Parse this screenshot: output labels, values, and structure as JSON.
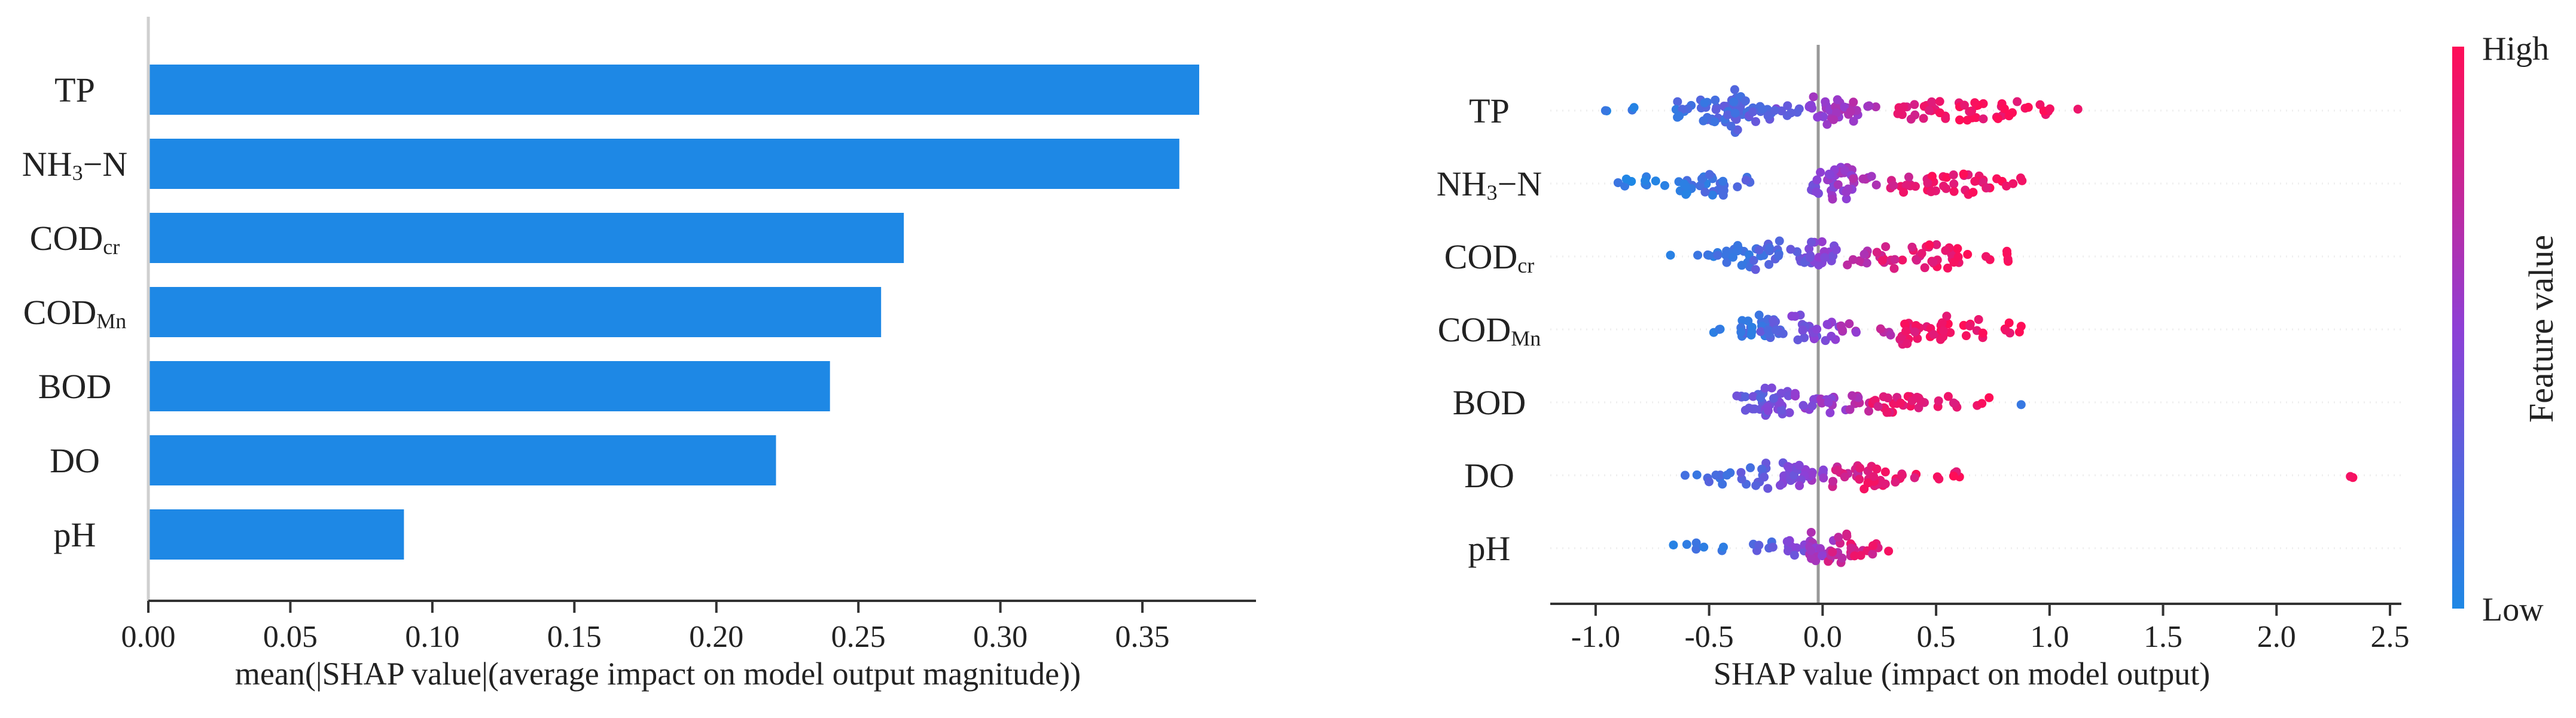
{
  "chart_data": [
    {
      "type": "bar",
      "orientation": "horizontal",
      "title": "",
      "categories": [
        "TP",
        "NH3-N",
        "CODcr",
        "CODMn",
        "BOD",
        "DO",
        "pH"
      ],
      "labels": [
        {
          "main": "TP",
          "sub": ""
        },
        {
          "main": "NH",
          "sub": "3",
          "tail": "−N"
        },
        {
          "main": "COD",
          "sub": "cr"
        },
        {
          "main": "COD",
          "sub": "Mn"
        },
        {
          "main": "BOD",
          "sub": ""
        },
        {
          "main": "DO",
          "sub": ""
        },
        {
          "main": "pH",
          "sub": ""
        }
      ],
      "values": [
        0.37,
        0.363,
        0.266,
        0.258,
        0.24,
        0.221,
        0.09
      ],
      "xlim": [
        0,
        0.39
      ],
      "xticks": [
        0.0,
        0.05,
        0.1,
        0.15,
        0.2,
        0.25,
        0.3,
        0.35
      ],
      "xtick_labels": [
        "0.00",
        "0.05",
        "0.10",
        "0.15",
        "0.20",
        "0.25",
        "0.30",
        "0.35"
      ],
      "xlabel": "mean(|SHAP value|(average impact on model output magnitude))",
      "ylabel": "",
      "color": "#1E88E5"
    },
    {
      "type": "scatter",
      "subtype": "beeswarm",
      "title": "",
      "features": [
        "TP",
        "NH3-N",
        "CODcr",
        "CODMn",
        "BOD",
        "DO",
        "pH"
      ],
      "labels": [
        {
          "main": "TP",
          "sub": ""
        },
        {
          "main": "NH",
          "sub": "3",
          "tail": "−N"
        },
        {
          "main": "COD",
          "sub": "cr"
        },
        {
          "main": "COD",
          "sub": "Mn"
        },
        {
          "main": "BOD",
          "sub": ""
        },
        {
          "main": "DO",
          "sub": ""
        },
        {
          "main": "pH",
          "sub": ""
        }
      ],
      "xlim": [
        -1.2,
        2.55
      ],
      "xticks": [
        -1.0,
        -0.5,
        0.0,
        0.5,
        1.0,
        1.5,
        2.0,
        2.5
      ],
      "xtick_labels": [
        "-1.0",
        "-0.5",
        "0.0",
        "0.5",
        "1.0",
        "1.5",
        "2.0",
        "2.5"
      ],
      "xlabel": "SHAP value (impact on model output)",
      "colorbar": {
        "label": "Feature value",
        "high": "High",
        "low": "Low",
        "low_color": "#1E88E5",
        "mid_color": "#8E3FD6",
        "high_color": "#FF0D57"
      },
      "series": [
        {
          "name": "TP",
          "clusters": [
            {
              "x": -0.95,
              "n": 2,
              "v": 0.05
            },
            {
              "x": -0.85,
              "n": 2,
              "v": 0.08
            },
            {
              "x": -0.6,
              "n": 8,
              "v": 0.15
            },
            {
              "x": -0.48,
              "n": 18,
              "v": 0.2
            },
            {
              "x": -0.38,
              "n": 30,
              "v": 0.22
            },
            {
              "x": -0.28,
              "n": 14,
              "v": 0.25
            },
            {
              "x": -0.15,
              "n": 8,
              "v": 0.35
            },
            {
              "x": 0.0,
              "n": 14,
              "v": 0.5
            },
            {
              "x": 0.08,
              "n": 18,
              "v": 0.6
            },
            {
              "x": 0.18,
              "n": 8,
              "v": 0.62
            },
            {
              "x": 0.35,
              "n": 8,
              "v": 0.85
            },
            {
              "x": 0.5,
              "n": 12,
              "v": 0.92
            },
            {
              "x": 0.65,
              "n": 14,
              "v": 0.95
            },
            {
              "x": 0.8,
              "n": 10,
              "v": 0.95
            },
            {
              "x": 0.95,
              "n": 8,
              "v": 0.97
            },
            {
              "x": 1.11,
              "n": 1,
              "v": 0.98
            }
          ]
        },
        {
          "name": "NH3-N",
          "clusters": [
            {
              "x": -0.9,
              "n": 4,
              "v": 0.05
            },
            {
              "x": -0.75,
              "n": 6,
              "v": 0.08
            },
            {
              "x": -0.6,
              "n": 10,
              "v": 0.12
            },
            {
              "x": -0.48,
              "n": 16,
              "v": 0.15
            },
            {
              "x": -0.38,
              "n": 6,
              "v": 0.2
            },
            {
              "x": 0.0,
              "n": 14,
              "v": 0.45
            },
            {
              "x": 0.08,
              "n": 24,
              "v": 0.55
            },
            {
              "x": 0.18,
              "n": 6,
              "v": 0.6
            },
            {
              "x": 0.35,
              "n": 10,
              "v": 0.85
            },
            {
              "x": 0.52,
              "n": 16,
              "v": 0.92
            },
            {
              "x": 0.68,
              "n": 14,
              "v": 0.95
            },
            {
              "x": 0.82,
              "n": 6,
              "v": 0.97
            }
          ]
        },
        {
          "name": "CODcr",
          "clusters": [
            {
              "x": -0.65,
              "n": 1,
              "v": 0.05
            },
            {
              "x": -0.5,
              "n": 6,
              "v": 0.1
            },
            {
              "x": -0.38,
              "n": 16,
              "v": 0.15
            },
            {
              "x": -0.25,
              "n": 18,
              "v": 0.22
            },
            {
              "x": -0.1,
              "n": 10,
              "v": 0.35
            },
            {
              "x": 0.0,
              "n": 18,
              "v": 0.45
            },
            {
              "x": 0.15,
              "n": 8,
              "v": 0.65
            },
            {
              "x": 0.3,
              "n": 12,
              "v": 0.85
            },
            {
              "x": 0.45,
              "n": 16,
              "v": 0.9
            },
            {
              "x": 0.6,
              "n": 12,
              "v": 0.95
            },
            {
              "x": 0.78,
              "n": 6,
              "v": 0.97
            }
          ]
        },
        {
          "name": "CODMn",
          "clusters": [
            {
              "x": -0.42,
              "n": 3,
              "v": 0.08
            },
            {
              "x": -0.3,
              "n": 18,
              "v": 0.15
            },
            {
              "x": -0.22,
              "n": 14,
              "v": 0.25
            },
            {
              "x": -0.08,
              "n": 14,
              "v": 0.4
            },
            {
              "x": 0.02,
              "n": 10,
              "v": 0.5
            },
            {
              "x": 0.12,
              "n": 6,
              "v": 0.6
            },
            {
              "x": 0.28,
              "n": 4,
              "v": 0.7
            },
            {
              "x": 0.4,
              "n": 18,
              "v": 0.92
            },
            {
              "x": 0.52,
              "n": 14,
              "v": 0.93
            },
            {
              "x": 0.68,
              "n": 8,
              "v": 0.95
            },
            {
              "x": 0.82,
              "n": 6,
              "v": 0.97
            }
          ]
        },
        {
          "name": "BOD",
          "clusters": [
            {
              "x": -0.32,
              "n": 14,
              "v": 0.3
            },
            {
              "x": -0.2,
              "n": 22,
              "v": 0.38
            },
            {
              "x": -0.08,
              "n": 8,
              "v": 0.5
            },
            {
              "x": 0.05,
              "n": 10,
              "v": 0.55
            },
            {
              "x": 0.18,
              "n": 8,
              "v": 0.7
            },
            {
              "x": 0.28,
              "n": 14,
              "v": 0.88
            },
            {
              "x": 0.4,
              "n": 12,
              "v": 0.92
            },
            {
              "x": 0.55,
              "n": 6,
              "v": 0.9
            },
            {
              "x": 0.72,
              "n": 3,
              "v": 0.93
            },
            {
              "x": 0.88,
              "n": 1,
              "v": 0.1
            }
          ]
        },
        {
          "name": "DO",
          "clusters": [
            {
              "x": -0.58,
              "n": 2,
              "v": 0.08
            },
            {
              "x": -0.45,
              "n": 8,
              "v": 0.18
            },
            {
              "x": -0.3,
              "n": 14,
              "v": 0.25
            },
            {
              "x": -0.15,
              "n": 18,
              "v": 0.4
            },
            {
              "x": -0.05,
              "n": 14,
              "v": 0.5
            },
            {
              "x": 0.1,
              "n": 14,
              "v": 0.8
            },
            {
              "x": 0.22,
              "n": 16,
              "v": 0.9
            },
            {
              "x": 0.38,
              "n": 8,
              "v": 0.92
            },
            {
              "x": 0.55,
              "n": 6,
              "v": 0.95
            },
            {
              "x": 2.32,
              "n": 2,
              "v": 0.98
            }
          ]
        },
        {
          "name": "pH",
          "clusters": [
            {
              "x": -0.6,
              "n": 4,
              "v": 0.08
            },
            {
              "x": -0.48,
              "n": 3,
              "v": 0.12
            },
            {
              "x": -0.25,
              "n": 6,
              "v": 0.25
            },
            {
              "x": -0.1,
              "n": 10,
              "v": 0.4
            },
            {
              "x": 0.0,
              "n": 18,
              "v": 0.6
            },
            {
              "x": 0.08,
              "n": 16,
              "v": 0.75
            },
            {
              "x": 0.18,
              "n": 8,
              "v": 0.85
            },
            {
              "x": 0.28,
              "n": 3,
              "v": 0.9
            }
          ]
        }
      ]
    }
  ]
}
